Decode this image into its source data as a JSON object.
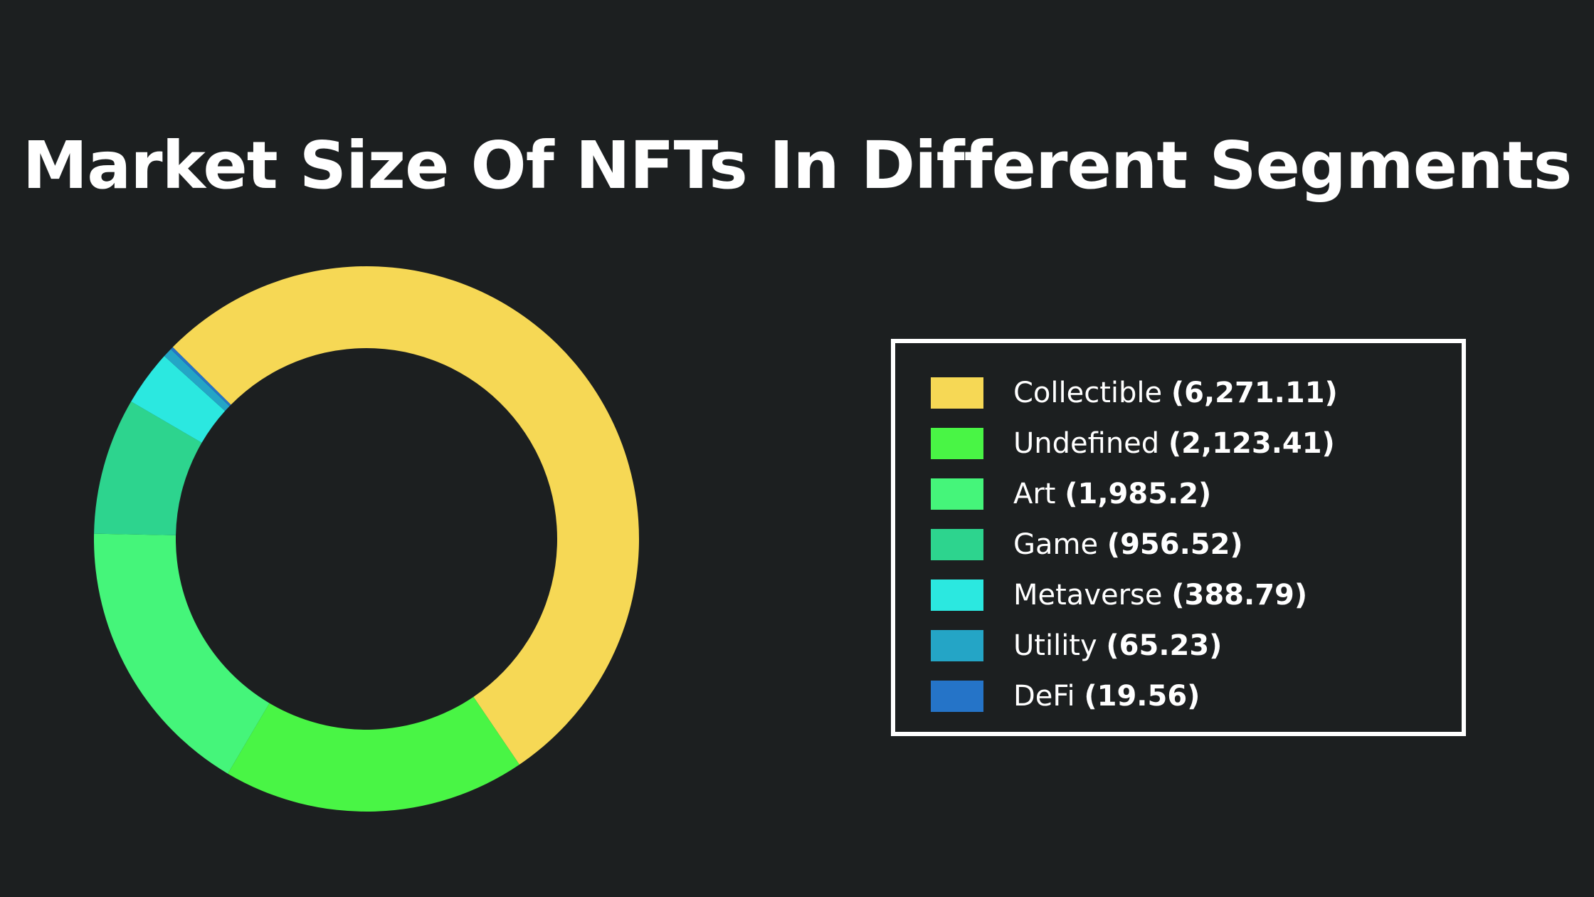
{
  "chart_data": {
    "type": "pie",
    "title": "Market Size Of NFTs In Different Segments",
    "donut": true,
    "legend_position": "right",
    "slices": [
      {
        "label": "Collectible",
        "value": 6271.11,
        "value_text": "(6,271.11)",
        "color": "#f6d855"
      },
      {
        "label": "Undefined",
        "value": 2123.41,
        "value_text": "(2,123.41)",
        "color": "#49f545"
      },
      {
        "label": "Art",
        "value": 1985.2,
        "value_text": "(1,985.2)",
        "color": "#45f57a"
      },
      {
        "label": "Game",
        "value": 956.52,
        "value_text": "(956.52)",
        "color": "#2dd48e"
      },
      {
        "label": "Metaverse",
        "value": 388.79,
        "value_text": "(388.79)",
        "color": "#2be8e0"
      },
      {
        "label": "Utility",
        "value": 65.23,
        "value_text": "(65.23)",
        "color": "#24a5c6"
      },
      {
        "label": "DeFi",
        "value": 19.56,
        "value_text": "(19.56)",
        "color": "#2574c8"
      }
    ]
  },
  "colors": {
    "background": "#1c1f20",
    "title": "#ffffff",
    "legend_border": "#ffffff"
  }
}
